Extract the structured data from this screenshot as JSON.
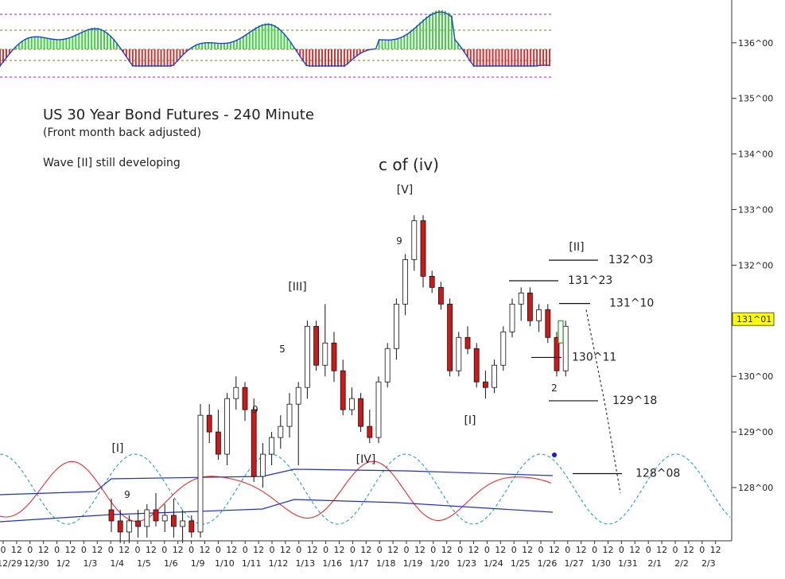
{
  "chart_data": {
    "type": "candlestick",
    "title": "US 30 Year Bond Futures - 240 Minute",
    "subtitle": "(Front month back adjusted)",
    "note": "Wave [II] still developing",
    "y_axis": {
      "ticks": [
        {
          "label": "128^00",
          "value": 128
        },
        {
          "label": "129^00",
          "value": 129
        },
        {
          "label": "130^00",
          "value": 130
        },
        {
          "label": "131^00",
          "value": 131
        },
        {
          "label": "132^00",
          "value": 132
        },
        {
          "label": "133^00",
          "value": 133
        },
        {
          "label": "134^00",
          "value": 134
        },
        {
          "label": "135^00",
          "value": 135
        },
        {
          "label": "136^00",
          "value": 136
        }
      ],
      "current_price_label": "131^01",
      "current_price": 131.03
    },
    "x_axis": {
      "dates": [
        "12/29",
        "12/30",
        "1/2",
        "1/3",
        "1/4",
        "1/5",
        "1/6",
        "1/9",
        "1/10",
        "1/11",
        "1/12",
        "1/13",
        "1/16",
        "1/17",
        "1/18",
        "1/19",
        "1/20",
        "1/23",
        "1/24",
        "1/25",
        "1/26",
        "1/27",
        "1/30",
        "1/31",
        "2/1",
        "2/2",
        "2/3"
      ],
      "row1_labels": [
        "0",
        "12",
        "0",
        "12",
        "0",
        "12",
        "0",
        "12",
        "0",
        "12",
        "0",
        "12",
        "0",
        "12",
        "0",
        "12",
        "0",
        "12",
        "0",
        "12",
        "0",
        "12",
        "0",
        "12",
        "0",
        "12",
        "0",
        "12",
        "0",
        "12",
        "0",
        "12",
        "0",
        "12",
        "0",
        "12",
        "0",
        "12",
        "0",
        "12",
        "0",
        "12",
        "0",
        "12",
        "0",
        "12",
        "0",
        "12",
        "0",
        "12",
        "0",
        "12",
        "0",
        "12"
      ]
    },
    "wave_labels": [
      {
        "text": "c of (iv)",
        "anchor": "top"
      },
      {
        "text": "[V]"
      },
      {
        "text": "[III]"
      },
      {
        "text": "[IV]"
      },
      {
        "text": "[I]",
        "position": "left"
      },
      {
        "text": "[I]",
        "position": "right"
      },
      {
        "text": "[II]"
      }
    ],
    "count_labels": [
      {
        "text": "9",
        "color": "#d02020",
        "near": "1/4"
      },
      {
        "text": "9",
        "color": "#d02020",
        "near": "1/11"
      },
      {
        "text": "5",
        "color": "#9a8a2a",
        "near": "1/12"
      },
      {
        "text": "9",
        "color": "#d02020",
        "near": "1/18"
      },
      {
        "text": "2",
        "color": "#2040d0",
        "near": "1/26"
      }
    ],
    "levels": [
      {
        "label": "132^03",
        "value": 132.09
      },
      {
        "label": "131^23",
        "value": 131.72
      },
      {
        "label": "131^10",
        "value": 131.31
      },
      {
        "label": "130^11",
        "value": 130.34
      },
      {
        "label": "129^18",
        "value": 129.56
      },
      {
        "label": "128^08",
        "value": 128.25
      }
    ],
    "candles": [
      [
        127.6,
        127.8,
        127.2,
        127.4
      ],
      [
        127.4,
        127.6,
        127.0,
        127.2
      ],
      [
        127.2,
        127.5,
        127.0,
        127.4
      ],
      [
        127.4,
        127.6,
        127.1,
        127.3
      ],
      [
        127.3,
        127.7,
        127.1,
        127.6
      ],
      [
        127.6,
        127.9,
        127.3,
        127.4
      ],
      [
        127.4,
        127.7,
        127.2,
        127.5
      ],
      [
        127.5,
        127.8,
        127.1,
        127.3
      ],
      [
        127.3,
        127.6,
        127.0,
        127.4
      ],
      [
        127.4,
        127.5,
        127.1,
        127.2
      ],
      [
        127.2,
        129.5,
        127.1,
        129.3
      ],
      [
        129.3,
        129.5,
        128.8,
        129.0
      ],
      [
        129.0,
        129.4,
        128.5,
        128.6
      ],
      [
        128.6,
        129.7,
        128.4,
        129.6
      ],
      [
        129.6,
        130.0,
        129.4,
        129.8
      ],
      [
        129.8,
        129.9,
        129.2,
        129.4
      ],
      [
        129.4,
        129.6,
        128.1,
        128.2
      ],
      [
        128.2,
        128.8,
        128.0,
        128.6
      ],
      [
        128.6,
        129.0,
        128.4,
        128.9
      ],
      [
        128.9,
        129.3,
        128.7,
        129.1
      ],
      [
        129.1,
        129.7,
        128.9,
        129.5
      ],
      [
        129.5,
        129.9,
        128.4,
        129.8
      ],
      [
        129.8,
        131.0,
        129.6,
        130.9
      ],
      [
        130.9,
        131.0,
        130.1,
        130.2
      ],
      [
        130.2,
        131.3,
        130.0,
        130.6
      ],
      [
        130.6,
        130.8,
        129.9,
        130.1
      ],
      [
        130.1,
        130.3,
        129.3,
        129.4
      ],
      [
        129.4,
        129.8,
        129.3,
        129.6
      ],
      [
        129.6,
        129.7,
        129.0,
        129.1
      ],
      [
        129.1,
        129.4,
        128.8,
        128.9
      ],
      [
        128.9,
        130.0,
        128.8,
        129.9
      ],
      [
        129.9,
        130.6,
        129.8,
        130.5
      ],
      [
        130.5,
        131.4,
        130.3,
        131.3
      ],
      [
        131.3,
        132.2,
        131.1,
        132.1
      ],
      [
        132.1,
        132.9,
        131.9,
        132.8
      ],
      [
        132.8,
        132.9,
        131.6,
        131.8
      ],
      [
        131.8,
        131.9,
        131.5,
        131.6
      ],
      [
        131.6,
        131.7,
        131.2,
        131.3
      ],
      [
        131.3,
        131.4,
        130.0,
        130.1
      ],
      [
        130.1,
        130.8,
        130.0,
        130.7
      ],
      [
        130.7,
        130.9,
        130.4,
        130.5
      ],
      [
        130.5,
        130.6,
        129.8,
        129.9
      ],
      [
        129.9,
        130.1,
        129.6,
        129.8
      ],
      [
        129.8,
        130.3,
        129.7,
        130.2
      ],
      [
        130.2,
        130.9,
        130.1,
        130.8
      ],
      [
        130.8,
        131.4,
        130.7,
        131.3
      ],
      [
        131.3,
        131.6,
        131.0,
        131.5
      ],
      [
        131.5,
        131.6,
        130.9,
        131.0
      ],
      [
        131.0,
        131.3,
        130.8,
        131.2
      ],
      [
        131.2,
        131.3,
        130.6,
        130.7
      ],
      [
        130.7,
        130.8,
        130.0,
        130.1
      ],
      [
        130.1,
        131.0,
        130.0,
        130.9
      ]
    ],
    "oscillator_panel": {
      "type": "histogram",
      "levels_dashed": true
    },
    "grid": false,
    "legend": "none"
  }
}
